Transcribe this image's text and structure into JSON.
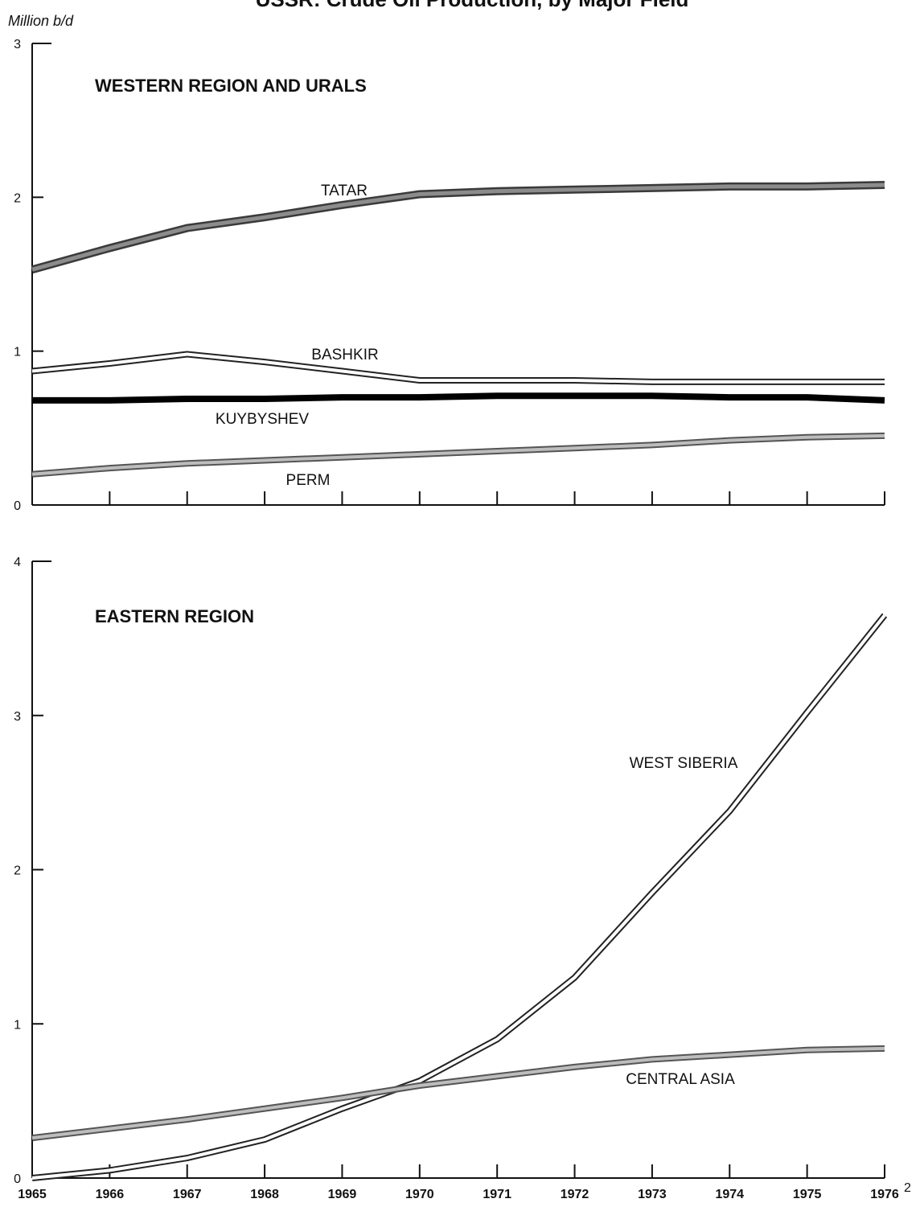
{
  "chart_data": [
    {
      "type": "line",
      "title": "USSR: Crude Oil Production, by Major Field",
      "ylabel": "Million b/d",
      "panel_label": "WESTERN REGION AND URALS",
      "x": [
        1965,
        1966,
        1967,
        1968,
        1969,
        1970,
        1971,
        1972,
        1973,
        1974,
        1975,
        1976
      ],
      "ylim": [
        0,
        3
      ],
      "yticks": [
        "0",
        "1",
        "2",
        "3"
      ],
      "grid": false,
      "series": [
        {
          "name": "TATAR",
          "values": [
            1.53,
            1.67,
            1.8,
            1.87,
            1.95,
            2.02,
            2.04,
            2.05,
            2.06,
            2.07,
            2.07,
            2.08
          ],
          "color": "#6e6e6e",
          "style": "thick-gray"
        },
        {
          "name": "BASHKIR",
          "values": [
            0.87,
            0.92,
            0.98,
            0.93,
            0.87,
            0.81,
            0.81,
            0.81,
            0.8,
            0.8,
            0.8,
            0.8
          ],
          "color": "#222222",
          "style": "double"
        },
        {
          "name": "KUYBYSHEV",
          "values": [
            0.68,
            0.68,
            0.69,
            0.69,
            0.7,
            0.7,
            0.71,
            0.71,
            0.71,
            0.7,
            0.7,
            0.68
          ],
          "color": "#000000",
          "style": "thick-black"
        },
        {
          "name": "PERM",
          "values": [
            0.2,
            0.24,
            0.27,
            0.29,
            0.31,
            0.33,
            0.35,
            0.37,
            0.39,
            0.42,
            0.44,
            0.45
          ],
          "color": "#9a9a9a",
          "style": "double-gray"
        }
      ]
    },
    {
      "type": "line",
      "panel_label": "EASTERN REGION",
      "x": [
        1965,
        1966,
        1967,
        1968,
        1969,
        1970,
        1971,
        1972,
        1973,
        1974,
        1975,
        1976
      ],
      "ylim": [
        0,
        4
      ],
      "yticks": [
        "0",
        "1",
        "2",
        "3",
        "4"
      ],
      "grid": false,
      "xtick_labels": [
        "1965",
        "1966",
        "1967",
        "1968",
        "1969",
        "1970",
        "1971",
        "1972",
        "1973",
        "1974",
        "1975",
        "1976"
      ],
      "xtick_footnote": "2",
      "series": [
        {
          "name": "WEST SIBERIA",
          "values": [
            0.0,
            0.05,
            0.13,
            0.25,
            0.45,
            0.63,
            0.9,
            1.3,
            1.85,
            2.38,
            3.02,
            3.65
          ],
          "color": "#222222",
          "style": "double"
        },
        {
          "name": "CENTRAL ASIA",
          "values": [
            0.26,
            0.32,
            0.38,
            0.45,
            0.52,
            0.6,
            0.66,
            0.72,
            0.77,
            0.8,
            0.83,
            0.84
          ],
          "color": "#8a8a8a",
          "style": "double-gray"
        }
      ]
    }
  ]
}
